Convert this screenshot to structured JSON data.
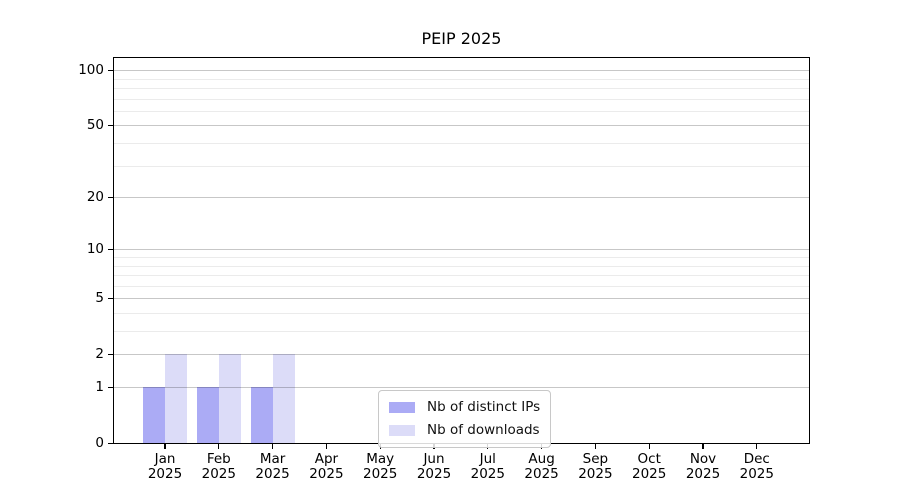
{
  "chart_data": {
    "type": "bar",
    "title": "PEIP 2025",
    "categories": [
      "Jan 2025",
      "Feb 2025",
      "Mar 2025",
      "Apr 2025",
      "May 2025",
      "Jun 2025",
      "Jul 2025",
      "Aug 2025",
      "Sep 2025",
      "Oct 2025",
      "Nov 2025",
      "Dec 2025"
    ],
    "series": [
      {
        "name": "Nb of distinct IPs",
        "color": "#ababf5",
        "values": [
          1,
          1,
          1,
          0,
          0,
          0,
          0,
          0,
          0,
          0,
          0,
          0
        ]
      },
      {
        "name": "Nb of downloads",
        "color": "#dcdcf8",
        "values": [
          2,
          2,
          2,
          0,
          0,
          0,
          0,
          0,
          0,
          0,
          0,
          0
        ]
      }
    ],
    "xlabel": "",
    "ylabel": "",
    "y_scale": "log1p",
    "y_ticks": [
      0,
      1,
      2,
      5,
      10,
      20,
      50,
      100
    ],
    "y_minor_gridlines": [
      3,
      4,
      6,
      7,
      8,
      9,
      30,
      40,
      60,
      70,
      80,
      90
    ],
    "ylim": [
      0,
      118
    ],
    "grid": true,
    "legend_position": "lower center"
  },
  "colors": {
    "axis": "#000000",
    "major_grid": "#c7c7c7",
    "minor_grid": "#ebebeb",
    "legend_border": "#c8c8c8",
    "background": "#ffffff"
  }
}
